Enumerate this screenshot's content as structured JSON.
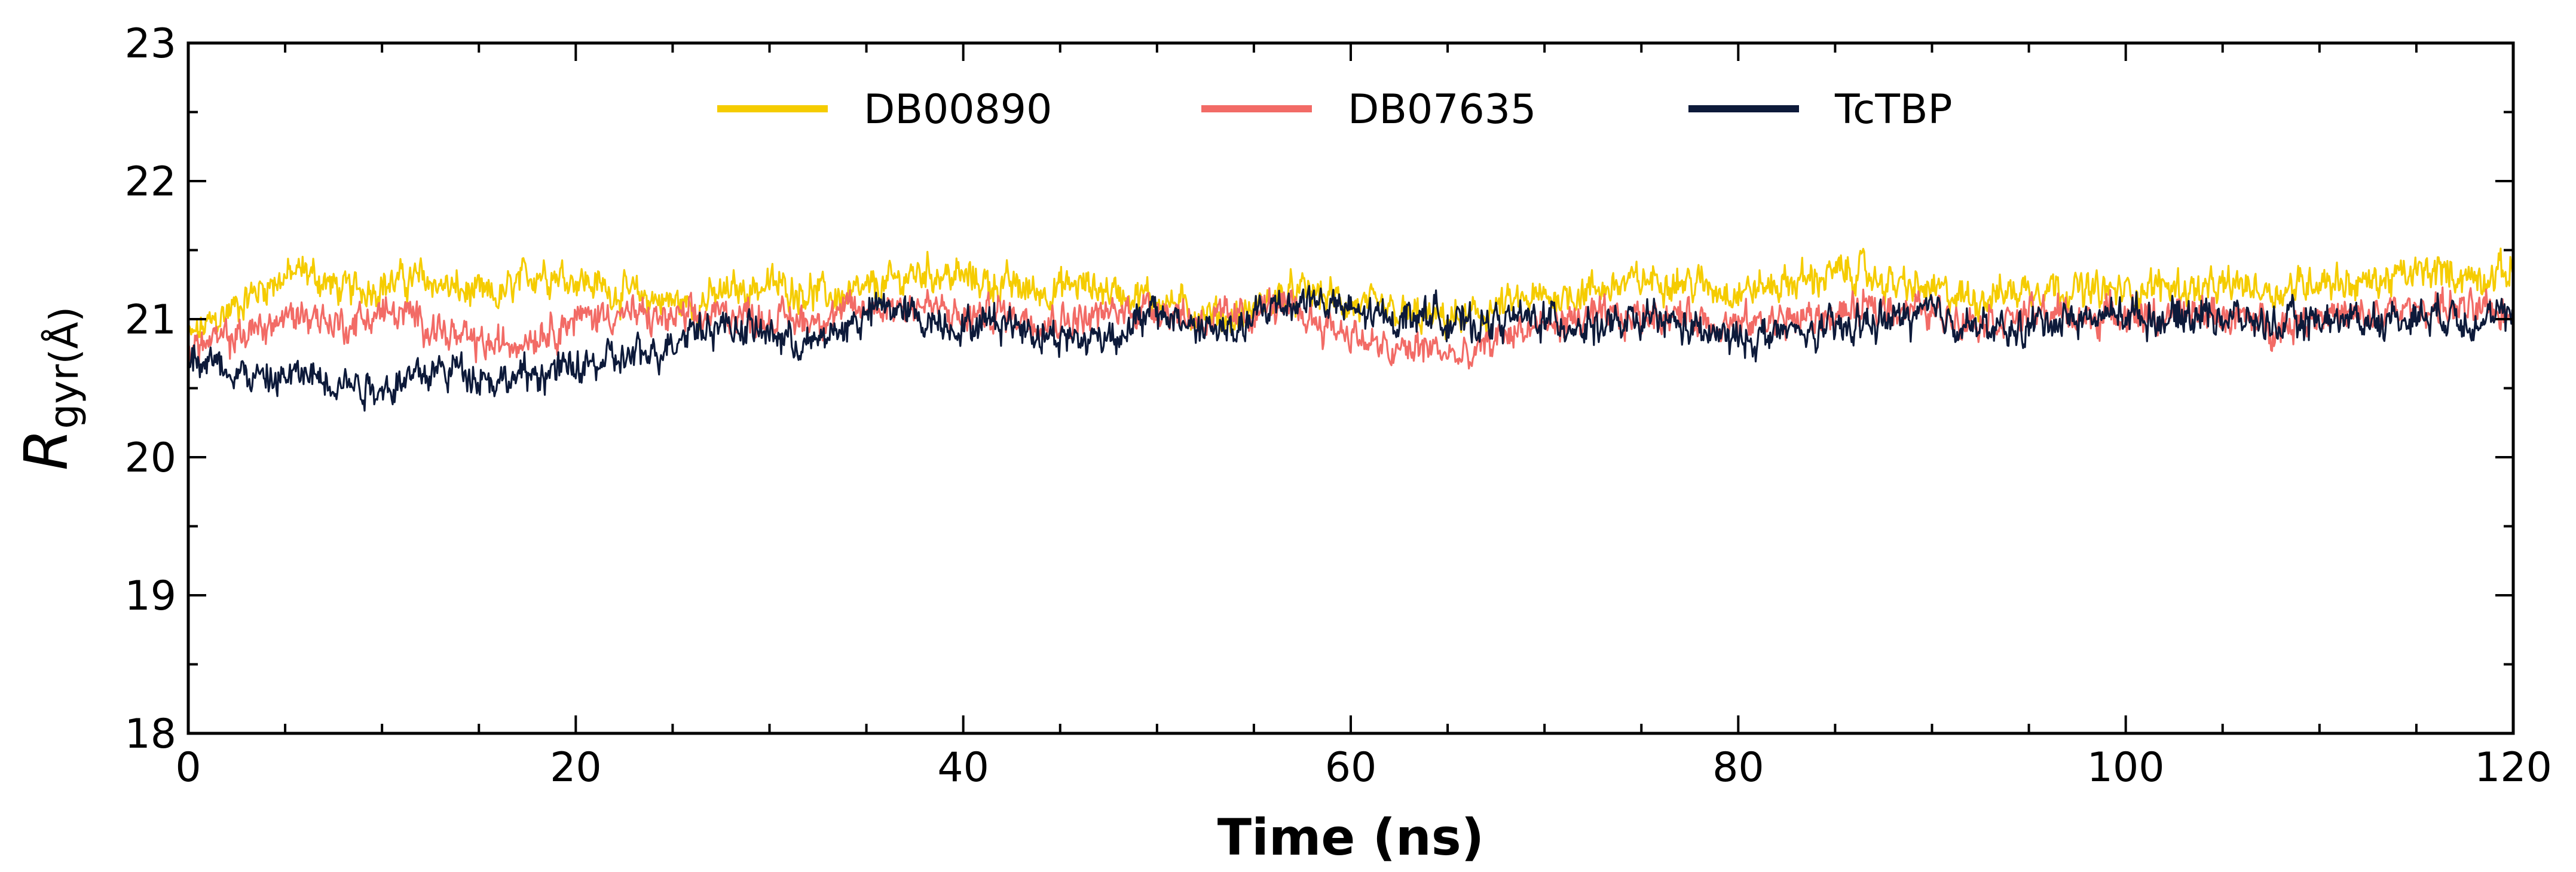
{
  "chart_data": {
    "type": "line",
    "xlabel": "Time (ns)",
    "ylabel_main": "R",
    "ylabel_sub": "gyr(Å)",
    "xlim": [
      0,
      120
    ],
    "ylim": [
      18,
      23
    ],
    "xticks": [
      "0",
      "20",
      "40",
      "60",
      "80",
      "100",
      "120"
    ],
    "yticks": [
      "18",
      "19",
      "20",
      "21",
      "22",
      "23"
    ],
    "grid": false,
    "legend_position": "top-center",
    "series": [
      {
        "name": "DB00890",
        "color": "#F5CC00",
        "x": [
          0,
          2,
          4,
          6,
          8,
          10,
          12,
          14,
          16,
          18,
          20,
          22,
          24,
          26,
          28,
          30,
          32,
          34,
          36,
          38,
          40,
          42,
          44,
          46,
          48,
          50,
          52,
          54,
          56,
          58,
          60,
          62,
          64,
          66,
          68,
          70,
          72,
          74,
          76,
          78,
          80,
          82,
          84,
          86,
          88,
          90,
          92,
          94,
          96,
          98,
          100,
          102,
          104,
          106,
          108,
          110,
          112,
          114,
          116,
          118,
          120
        ],
        "y": [
          20.85,
          21.05,
          21.25,
          21.35,
          21.2,
          21.25,
          21.3,
          21.2,
          21.15,
          21.35,
          21.3,
          21.2,
          21.15,
          21.1,
          21.2,
          21.25,
          21.2,
          21.15,
          21.25,
          21.35,
          21.3,
          21.25,
          21.2,
          21.25,
          21.2,
          21.15,
          21.05,
          21.0,
          21.15,
          21.2,
          21.1,
          21.05,
          21.0,
          21.0,
          21.1,
          21.15,
          21.2,
          21.25,
          21.3,
          21.25,
          21.2,
          21.25,
          21.3,
          21.35,
          21.25,
          21.2,
          21.15,
          21.2,
          21.25,
          21.2,
          21.2,
          21.25,
          21.2,
          21.25,
          21.2,
          21.3,
          21.25,
          21.3,
          21.35,
          21.3,
          21.35
        ]
      },
      {
        "name": "DB07635",
        "color": "#F26B66",
        "x": [
          0,
          2,
          4,
          6,
          8,
          10,
          12,
          14,
          16,
          18,
          20,
          22,
          24,
          26,
          28,
          30,
          32,
          34,
          36,
          38,
          40,
          42,
          44,
          46,
          48,
          50,
          52,
          54,
          56,
          58,
          60,
          62,
          64,
          66,
          68,
          70,
          72,
          74,
          76,
          78,
          80,
          82,
          84,
          86,
          88,
          90,
          92,
          94,
          96,
          98,
          100,
          102,
          104,
          106,
          108,
          110,
          112,
          114,
          116,
          118,
          120
        ],
        "y": [
          20.8,
          20.85,
          20.95,
          21.05,
          20.95,
          21.05,
          21.0,
          20.85,
          20.8,
          20.9,
          21.0,
          21.05,
          21.0,
          21.0,
          21.05,
          21.0,
          21.0,
          21.05,
          21.1,
          21.1,
          21.0,
          21.05,
          21.0,
          21.0,
          21.05,
          21.1,
          21.0,
          21.0,
          21.1,
          21.0,
          20.9,
          20.75,
          20.8,
          20.7,
          20.9,
          20.95,
          21.0,
          21.0,
          21.05,
          21.0,
          20.95,
          21.0,
          21.0,
          21.05,
          21.1,
          21.05,
          21.0,
          21.0,
          21.05,
          21.0,
          21.05,
          21.0,
          21.05,
          21.0,
          20.95,
          21.05,
          21.0,
          21.05,
          21.1,
          21.05,
          21.05
        ]
      },
      {
        "name": "TcTBP",
        "color": "#0D1A3A",
        "x": [
          0,
          2,
          4,
          6,
          8,
          10,
          12,
          14,
          16,
          18,
          20,
          22,
          24,
          26,
          28,
          30,
          32,
          34,
          36,
          38,
          40,
          42,
          44,
          46,
          48,
          50,
          52,
          54,
          56,
          58,
          60,
          62,
          64,
          66,
          68,
          70,
          72,
          74,
          76,
          78,
          80,
          82,
          84,
          86,
          88,
          90,
          92,
          94,
          96,
          98,
          100,
          102,
          104,
          106,
          108,
          110,
          112,
          114,
          116,
          118,
          120
        ],
        "y": [
          20.75,
          20.65,
          20.55,
          20.6,
          20.55,
          20.5,
          20.6,
          20.65,
          20.55,
          20.6,
          20.65,
          20.7,
          20.75,
          20.95,
          20.95,
          20.9,
          20.8,
          20.95,
          21.1,
          21.0,
          20.95,
          21.0,
          20.9,
          20.85,
          20.9,
          21.05,
          20.95,
          20.9,
          21.1,
          21.15,
          21.05,
          21.0,
          21.05,
          20.95,
          21.0,
          21.0,
          20.95,
          20.95,
          21.0,
          20.9,
          20.85,
          20.9,
          20.9,
          20.95,
          21.0,
          21.05,
          20.95,
          20.9,
          21.0,
          21.0,
          21.05,
          21.0,
          21.05,
          21.0,
          20.95,
          21.0,
          21.0,
          21.0,
          21.05,
          21.0,
          21.0
        ]
      }
    ]
  }
}
